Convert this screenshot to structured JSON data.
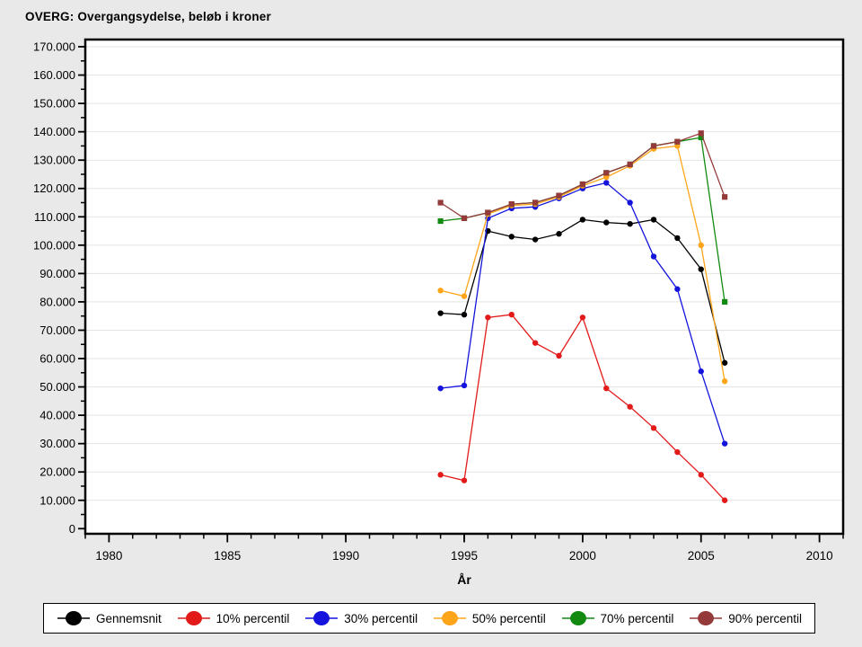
{
  "title": "OVERG: Overgangsydelse, beløb i kroner",
  "chart_data": {
    "type": "line",
    "x": [
      1994,
      1995,
      1996,
      1997,
      1998,
      1999,
      2000,
      2001,
      2002,
      2003,
      2004,
      2005,
      2006
    ],
    "series": [
      {
        "name": "Gennemsnit",
        "color": "#000000",
        "marker": "circle",
        "values": [
          76000,
          75500,
          105000,
          103000,
          102000,
          104000,
          109000,
          108000,
          107500,
          109000,
          102500,
          91500,
          58500
        ]
      },
      {
        "name": "10% percentil",
        "color": "#e31a1a",
        "marker": "circle",
        "values": [
          19000,
          17000,
          74500,
          75500,
          65500,
          61000,
          74500,
          49500,
          43000,
          35500,
          27000,
          19000,
          10000
        ]
      },
      {
        "name": "30% percentil",
        "color": "#1414dd",
        "marker": "circle",
        "values": [
          49500,
          50500,
          109500,
          113000,
          113500,
          116500,
          120000,
          122000,
          115000,
          96000,
          84500,
          55500,
          30000
        ]
      },
      {
        "name": "50% percentil",
        "color": "#ffa519",
        "marker": "circle",
        "values": [
          84000,
          82000,
          111000,
          114000,
          114500,
          117000,
          121000,
          124000,
          128000,
          134000,
          135000,
          100000,
          52000
        ]
      },
      {
        "name": "70% percentil",
        "color": "#128a12",
        "marker": "square",
        "values": [
          108500,
          109500,
          111500,
          114500,
          115000,
          117500,
          121500,
          125500,
          128500,
          135000,
          136500,
          138000,
          80000
        ]
      },
      {
        "name": "90% percentil",
        "color": "#943a3a",
        "marker": "square",
        "values": [
          115000,
          109500,
          111500,
          114500,
          115000,
          117500,
          121500,
          125500,
          128500,
          135000,
          136500,
          139500,
          117000
        ]
      }
    ],
    "xlabel": "År",
    "xlim": [
      1979,
      2011
    ],
    "ylim": [
      0,
      170000
    ],
    "x_tick_labels": [
      "1980",
      "1985",
      "1990",
      "1995",
      "2000",
      "2005",
      "2010"
    ],
    "x_tick_values": [
      1980,
      1985,
      1990,
      1995,
      2000,
      2005,
      2010
    ],
    "y_tick_labels": [
      "0",
      "10.000",
      "20.000",
      "30.000",
      "40.000",
      "50.000",
      "60.000",
      "70.000",
      "80.000",
      "90.000",
      "100.000",
      "110.000",
      "120.000",
      "130.000",
      "140.000",
      "150.000",
      "160.000",
      "170.000"
    ],
    "y_tick_values": [
      0,
      10000,
      20000,
      30000,
      40000,
      50000,
      60000,
      70000,
      80000,
      90000,
      100000,
      110000,
      120000,
      130000,
      140000,
      150000,
      160000,
      170000
    ],
    "y_minor_step": 5000,
    "x_minor_step": 1,
    "grid": "horizontal",
    "grid_color": "#e3e3e3",
    "plot_background": "#ffffff",
    "page_background": "#e9e9e9",
    "legend_position": "bottom"
  }
}
